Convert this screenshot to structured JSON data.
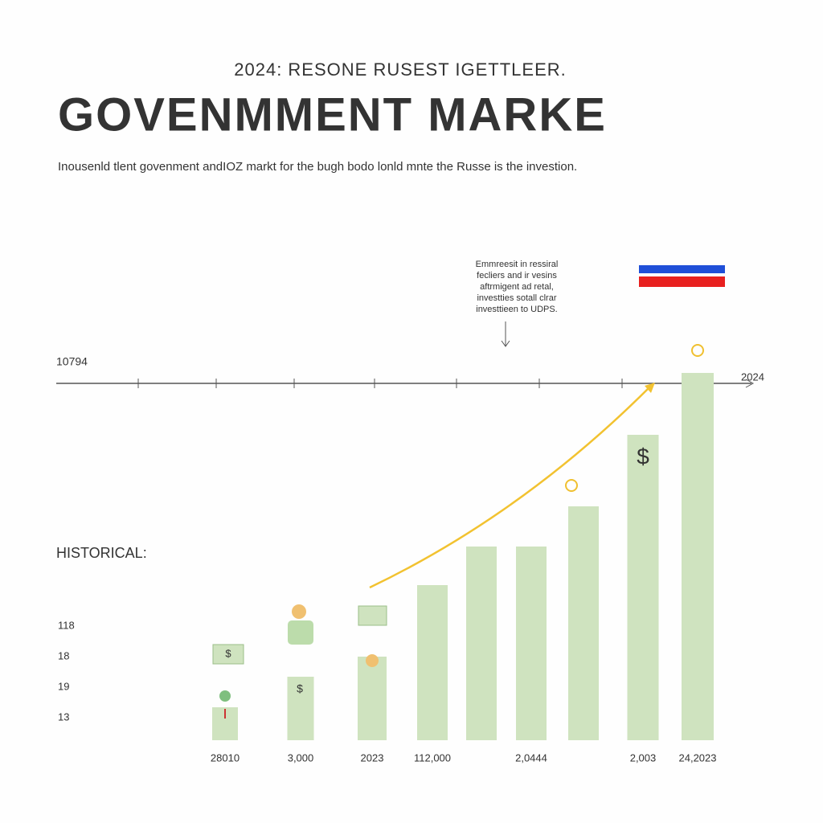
{
  "chart_data": {
    "type": "bar",
    "kicker": "2024: RESONE RUSEST IGETTLEER.",
    "title": "GOVENMMENT MARKE",
    "subtitle": "Inousenld tlent govenment andIOZ markt for the bugh bodo lonld mnte the Russe is the investion.",
    "annotation": [
      "Emmreesit in ressiral",
      "fecliers and ir vesins",
      "aftrmigent ad retal,",
      "investties sotall clrar",
      "investtieen to UDPS."
    ],
    "timeline_labels": [
      "10794",
      "2024"
    ],
    "section_label": "HISTORICAL:",
    "side_labels": [
      "118",
      "18",
      "19",
      "13"
    ],
    "categories": [
      "28010",
      "3,000",
      "2023",
      "112,000",
      null,
      "2,0444",
      null,
      "2,003",
      "24,2023"
    ],
    "values": [
      41,
      79,
      104,
      193,
      241,
      241,
      291,
      380,
      457
    ],
    "color": "#cfe3bf",
    "ylim": [
      0,
      500
    ]
  }
}
